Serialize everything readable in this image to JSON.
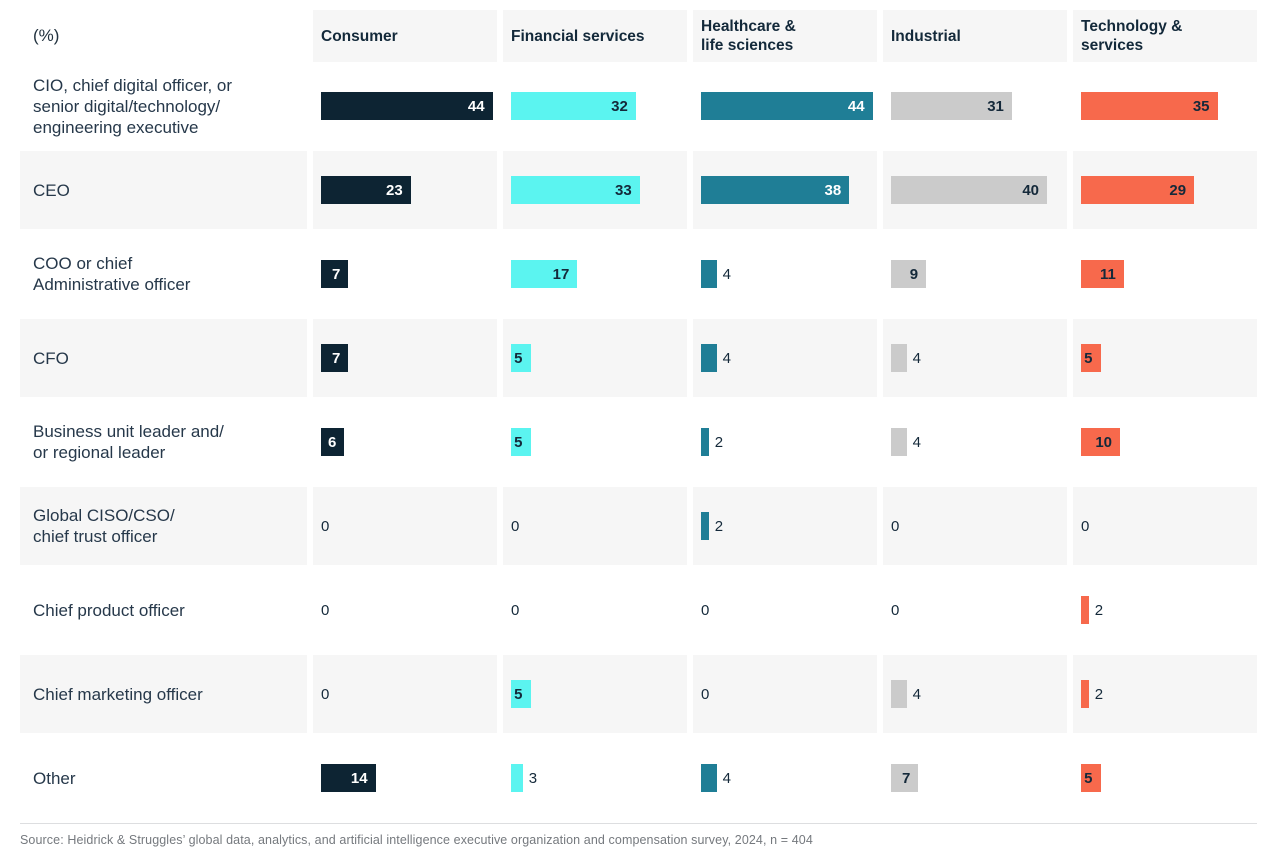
{
  "unit_label": "(%)",
  "source": "Source: Heidrick & Struggles’ global data, analytics, and artificial intelligence executive organization and compensation survey, 2024, n = 404",
  "colors": {
    "row_shade": "#F6F6F6",
    "divider": "#DDDEE0",
    "label_text": "#26384A",
    "value_text": "#14293A",
    "source_text": "#75797E"
  },
  "chart_data": {
    "type": "bar",
    "orientation": "horizontal",
    "value_unit": "%",
    "unit_label": "(%)",
    "xlim": [
      0,
      47
    ],
    "grid": false,
    "legend_position": "column-headers",
    "categories": [
      "CIO, chief digital officer, or senior digital/technology/ engineering executive",
      "CEO",
      "COO or chief Administrative officer",
      "CFO",
      "Business unit leader and/ or regional leader",
      "Global CISO/CSO/ chief trust officer",
      "Chief product officer",
      "Chief marketing officer",
      "Other"
    ],
    "row_labels_lines": [
      [
        "CIO, chief digital officer, or",
        "senior digital/technology/",
        "engineering executive"
      ],
      [
        "CEO"
      ],
      [
        "COO or chief",
        "Administrative officer"
      ],
      [
        "CFO"
      ],
      [
        "Business unit leader and/",
        "or regional leader"
      ],
      [
        "Global CISO/CSO/",
        "chief trust officer"
      ],
      [
        "Chief product officer"
      ],
      [
        "Chief marketing officer"
      ],
      [
        "Other"
      ]
    ],
    "series": [
      {
        "name": "Consumer",
        "name_lines": [
          "Consumer"
        ],
        "color": "#0D2433",
        "inside_text_color": "#FFFFFF",
        "values": [
          44,
          23,
          7,
          7,
          6,
          0,
          0,
          0,
          14
        ]
      },
      {
        "name": "Financial services",
        "name_lines": [
          "Financial services"
        ],
        "color": "#5BF4F0",
        "inside_text_color": "#14293A",
        "values": [
          32,
          33,
          17,
          5,
          5,
          0,
          0,
          5,
          3
        ]
      },
      {
        "name": "Healthcare & life sciences",
        "name_lines": [
          "Healthcare &",
          "life sciences"
        ],
        "color": "#1F7E96",
        "inside_text_color": "#FFFFFF",
        "values": [
          44,
          38,
          4,
          4,
          2,
          2,
          0,
          0,
          4
        ]
      },
      {
        "name": "Industrial",
        "name_lines": [
          "Industrial"
        ],
        "color": "#CBCBCB",
        "inside_text_color": "#14293A",
        "values": [
          31,
          40,
          9,
          4,
          4,
          0,
          0,
          4,
          7
        ]
      },
      {
        "name": "Technology & services",
        "name_lines": [
          "Technology &",
          "services"
        ],
        "color": "#F7694C",
        "inside_text_color": "#14293A",
        "values": [
          35,
          29,
          11,
          5,
          10,
          0,
          2,
          2,
          5
        ]
      }
    ]
  }
}
